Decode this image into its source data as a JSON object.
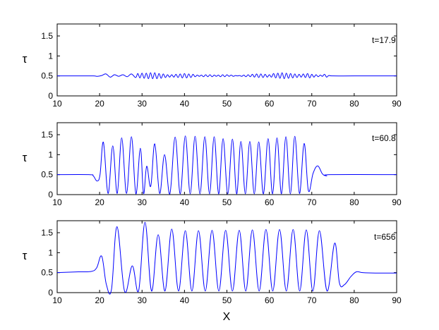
{
  "chart_data": [
    {
      "type": "line",
      "annotation": "t=17.9",
      "ylabel": "τ",
      "xlabel": "",
      "xlim": [
        10,
        90
      ],
      "ylim": [
        0,
        1.8
      ],
      "xticks": [
        10,
        20,
        30,
        40,
        50,
        60,
        70,
        80,
        90
      ],
      "yticks": [
        0,
        0.5,
        1,
        1.5
      ],
      "xtick_labels": [
        "10",
        "20",
        "30",
        "40",
        "50",
        "60",
        "70",
        "80",
        "90"
      ],
      "ytick_labels": [
        "0",
        "0.5",
        "1",
        "1.5"
      ],
      "grid": false,
      "series": [
        {
          "color": "#0000ff",
          "x": [
            10,
            15,
            18.5,
            19.5,
            20.5,
            21.5,
            22.5,
            23.5,
            24.5,
            25.5,
            26.5,
            27.5,
            28.5,
            29,
            29.5,
            30,
            30.5,
            31,
            31.5,
            32,
            32.5,
            33,
            33.5,
            34,
            34.5,
            35,
            35.5,
            36,
            36.5,
            37,
            37.5,
            38,
            38.5,
            39,
            39.5,
            40,
            40.5,
            41,
            41.5,
            42,
            42.5,
            43,
            43.5,
            44,
            44.5,
            45,
            45.5,
            46,
            46.5,
            47,
            47.5,
            48,
            48.5,
            49,
            49.5,
            50,
            50.5,
            51,
            51.5,
            52,
            52.5,
            53,
            53.5,
            54,
            54.5,
            55,
            55.5,
            56,
            56.5,
            57,
            57.5,
            58,
            58.5,
            59,
            59.5,
            60,
            60.5,
            61,
            61.5,
            62,
            62.5,
            63,
            63.5,
            64,
            64.5,
            65,
            65.5,
            66,
            66.5,
            67,
            67.5,
            68,
            68.5,
            69,
            69.5,
            70,
            70.5,
            71,
            71.5,
            72,
            72.5,
            73,
            73.5,
            74,
            75,
            80,
            90
          ],
          "y": [
            0.5,
            0.5,
            0.5,
            0.49,
            0.51,
            0.55,
            0.47,
            0.53,
            0.49,
            0.53,
            0.48,
            0.55,
            0.46,
            0.56,
            0.45,
            0.57,
            0.44,
            0.57,
            0.43,
            0.58,
            0.43,
            0.58,
            0.43,
            0.56,
            0.44,
            0.55,
            0.46,
            0.53,
            0.47,
            0.53,
            0.47,
            0.54,
            0.46,
            0.55,
            0.45,
            0.56,
            0.45,
            0.55,
            0.46,
            0.54,
            0.48,
            0.52,
            0.49,
            0.52,
            0.48,
            0.53,
            0.48,
            0.53,
            0.48,
            0.52,
            0.49,
            0.52,
            0.48,
            0.53,
            0.48,
            0.53,
            0.49,
            0.52,
            0.49,
            0.51,
            0.5,
            0.51,
            0.49,
            0.52,
            0.48,
            0.53,
            0.48,
            0.54,
            0.47,
            0.55,
            0.46,
            0.55,
            0.46,
            0.54,
            0.47,
            0.53,
            0.47,
            0.56,
            0.45,
            0.57,
            0.44,
            0.58,
            0.43,
            0.57,
            0.44,
            0.56,
            0.45,
            0.55,
            0.46,
            0.54,
            0.47,
            0.55,
            0.46,
            0.56,
            0.45,
            0.54,
            0.47,
            0.53,
            0.48,
            0.52,
            0.49,
            0.54,
            0.47,
            0.51,
            0.5,
            0.5,
            0.5
          ]
        }
      ]
    },
    {
      "type": "line",
      "annotation": "t=60.8",
      "ylabel": "τ",
      "xlabel": "",
      "xlim": [
        10,
        90
      ],
      "ylim": [
        0,
        1.8
      ],
      "xticks": [
        10,
        20,
        30,
        40,
        50,
        60,
        70,
        80,
        90
      ],
      "yticks": [
        0,
        0.5,
        1,
        1.5
      ],
      "xtick_labels": [
        "10",
        "20",
        "30",
        "40",
        "50",
        "60",
        "70",
        "80",
        "90"
      ],
      "ytick_labels": [
        "0",
        "0.5",
        "1",
        "1.5"
      ],
      "grid": false,
      "series": [
        {
          "color": "#0000ff",
          "start": [
            [
              10,
              0.5
            ],
            [
              17.5,
              0.5
            ],
            [
              18.5,
              0.47
            ],
            [
              19.4,
              0.34
            ],
            [
              20.1,
              0.5
            ]
          ],
          "peaks": [
            [
              20.9,
              1.31
            ],
            [
              23.1,
              1.22
            ],
            [
              25.2,
              1.42
            ],
            [
              27.5,
              1.45
            ],
            [
              29.6,
              1.16
            ],
            [
              31.1,
              0.71
            ],
            [
              33.0,
              1.27
            ],
            [
              35.3,
              1.0
            ],
            [
              37.8,
              1.44
            ],
            [
              40.2,
              1.47
            ],
            [
              42.5,
              1.46
            ],
            [
              44.8,
              1.45
            ],
            [
              47.0,
              1.45
            ],
            [
              49.1,
              1.4
            ],
            [
              51.3,
              1.39
            ],
            [
              53.3,
              1.33
            ],
            [
              55.4,
              1.33
            ],
            [
              57.5,
              1.32
            ],
            [
              59.7,
              1.4
            ],
            [
              61.8,
              1.42
            ],
            [
              63.9,
              1.45
            ],
            [
              66.0,
              1.46
            ],
            [
              68.2,
              1.28
            ]
          ],
          "valleys": [
            0.03,
            0.03,
            0.03,
            0.02,
            0.03,
            0.21,
            0.03,
            0.02,
            0.02,
            0.02,
            0.02,
            0.02,
            0.02,
            0.02,
            0.02,
            0.02,
            0.02,
            0.02,
            0.02,
            0.02,
            0.02,
            0.03
          ],
          "end": [
            [
              69.2,
              0.1
            ],
            [
              70.3,
              0.53
            ],
            [
              71.4,
              0.72
            ],
            [
              72.5,
              0.52
            ],
            [
              73.5,
              0.47
            ],
            [
              74.5,
              0.5
            ],
            [
              90,
              0.5
            ]
          ]
        }
      ]
    },
    {
      "type": "line",
      "annotation": "t=656",
      "ylabel": "τ",
      "xlabel": "X",
      "xlim": [
        10,
        90
      ],
      "ylim": [
        0,
        1.8
      ],
      "xticks": [
        10,
        20,
        30,
        40,
        50,
        60,
        70,
        80,
        90
      ],
      "yticks": [
        0,
        0.5,
        1,
        1.5
      ],
      "xtick_labels": [
        "10",
        "20",
        "30",
        "40",
        "50",
        "60",
        "70",
        "80",
        "90"
      ],
      "ytick_labels": [
        "0",
        "0.5",
        "1",
        "1.5"
      ],
      "grid": false,
      "series": [
        {
          "color": "#0000ff",
          "start": [
            [
              10,
              0.5
            ],
            [
              15,
              0.52
            ],
            [
              18,
              0.53
            ],
            [
              19.3,
              0.62
            ],
            [
              20.5,
              0.91
            ],
            [
              21.6,
              0.2
            ],
            [
              22.8,
              0.08
            ]
          ],
          "peaks": [
            [
              24.1,
              1.65
            ],
            [
              27.7,
              0.67
            ],
            [
              30.7,
              1.76
            ],
            [
              33.8,
              1.45
            ],
            [
              37.0,
              1.59
            ],
            [
              40.2,
              1.55
            ],
            [
              43.3,
              1.55
            ],
            [
              46.5,
              1.56
            ],
            [
              49.7,
              1.56
            ],
            [
              52.9,
              1.56
            ],
            [
              56.0,
              1.57
            ],
            [
              59.2,
              1.58
            ],
            [
              62.4,
              1.58
            ],
            [
              65.6,
              1.58
            ],
            [
              68.7,
              1.57
            ],
            [
              71.8,
              1.55
            ],
            [
              75.4,
              1.24
            ]
          ],
          "valleys": [
            0.03,
            0.05,
            0.04,
            0.04,
            0.04,
            0.04,
            0.04,
            0.04,
            0.04,
            0.04,
            0.04,
            0.04,
            0.04,
            0.04,
            0.04,
            0.04
          ],
          "end": [
            [
              76.5,
              0.25
            ],
            [
              77.7,
              0.2
            ],
            [
              79.2,
              0.4
            ],
            [
              80.5,
              0.52
            ],
            [
              82,
              0.5
            ],
            [
              85,
              0.49
            ],
            [
              90,
              0.49
            ]
          ]
        }
      ]
    }
  ]
}
